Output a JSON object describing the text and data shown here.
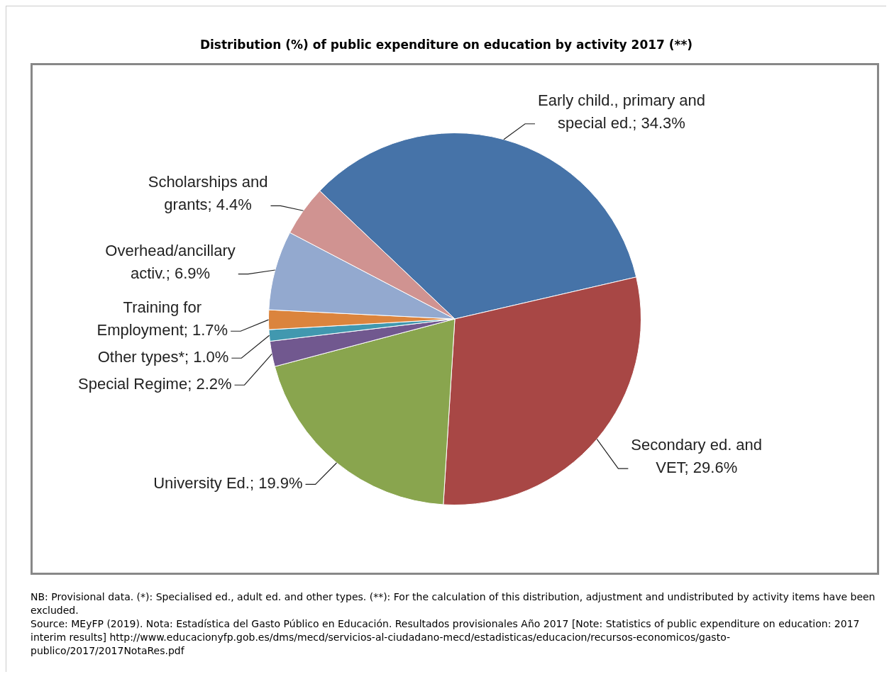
{
  "chart_data": {
    "type": "pie",
    "title": "Distribution (%) of public expenditure on education by activity 2017  (**)",
    "categories": [
      "Early child., primary and special ed.",
      "Secondary ed. and VET",
      "University Ed.",
      "Special Regime",
      "Other types*",
      "Training for Employment",
      "Overhead/ancillary activ.",
      "Scholarships and grants"
    ],
    "values": [
      34.3,
      29.6,
      19.9,
      2.2,
      1.0,
      1.7,
      6.9,
      4.4
    ],
    "value_labels": [
      "34.3%",
      "29.6%",
      "19.9%",
      "2.2%",
      "1.0%",
      "1.7%",
      "6.9%",
      "4.4%"
    ],
    "colors": [
      "#4673a8",
      "#a84745",
      "#89a54e",
      "#71588f",
      "#4198af",
      "#db843d",
      "#93a9cf",
      "#d09391"
    ],
    "legend": false,
    "annotations": [
      "NB: Provisional data. (*): Specialised ed., adult ed. and other types. (**): For the calculation of this distribution, adjustment and undistributed by activity items have been excluded.",
      "Source: MEyFP (2019). Nota: Estadística del Gasto Público en Educación. Resultados provisionales Año 2017 [Note: Statistics of public expenditure on education: 2017 interim results] http://www.educacionyfp.gob.es/dms/mecd/servicios-al-ciudadano-mecd/estadisticas/educacion/recursos-economicos/gasto-publico/2017/2017NotaRes.pdf"
    ]
  }
}
